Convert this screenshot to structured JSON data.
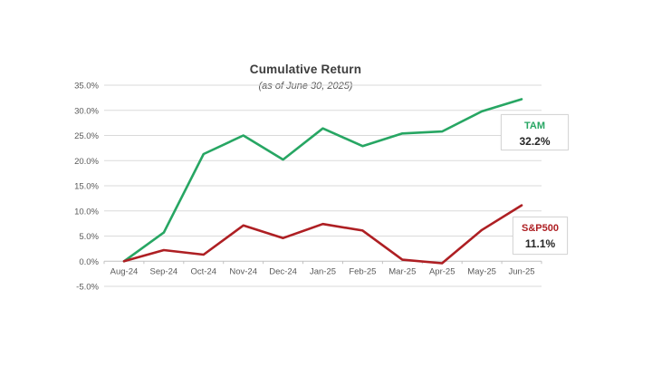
{
  "header": {
    "title": "Cumulative Return",
    "subtitle": "(as of June 30, 2025)"
  },
  "chart_data": {
    "type": "line",
    "title": "Cumulative Return",
    "subtitle": "(as of June 30, 2025)",
    "categories": [
      "Aug-24",
      "Sep-24",
      "Oct-24",
      "Nov-24",
      "Dec-24",
      "Jan-25",
      "Feb-25",
      "Mar-25",
      "Apr-25",
      "May-25",
      "Jun-25"
    ],
    "series": [
      {
        "name": "TAM",
        "color": "#27a663",
        "values": [
          0.0,
          5.7,
          21.3,
          25.0,
          20.2,
          26.4,
          22.9,
          25.4,
          25.8,
          29.8,
          32.2
        ],
        "final_label": "32.2%"
      },
      {
        "name": "S&P500",
        "color": "#ae1f23",
        "values": [
          0.0,
          2.2,
          1.3,
          7.1,
          4.6,
          7.4,
          6.1,
          0.3,
          -0.4,
          6.2,
          11.1
        ],
        "final_label": "11.1%"
      }
    ],
    "y_axis": {
      "min": -5,
      "max": 35,
      "step": 5,
      "tick_labels": [
        "35.0%",
        "30.0%",
        "25.0%",
        "20.0%",
        "15.0%",
        "10.0%",
        "5.0%",
        "0.0%",
        "-5.0%"
      ]
    },
    "xlabel": "",
    "ylabel": "",
    "grid": true,
    "legend_position": "right-inline-boxes"
  },
  "legend": {
    "tam": {
      "label": "TAM",
      "value": "32.2%"
    },
    "sp500": {
      "label": "S&P500",
      "value": "11.1%"
    }
  },
  "colors": {
    "tam_line": "#27a663",
    "sp500_line": "#ae1f23",
    "gridline": "#dadada",
    "axis_line": "#c2c2c2",
    "tick_text": "#595959",
    "title_text": "#3d3d3d"
  }
}
